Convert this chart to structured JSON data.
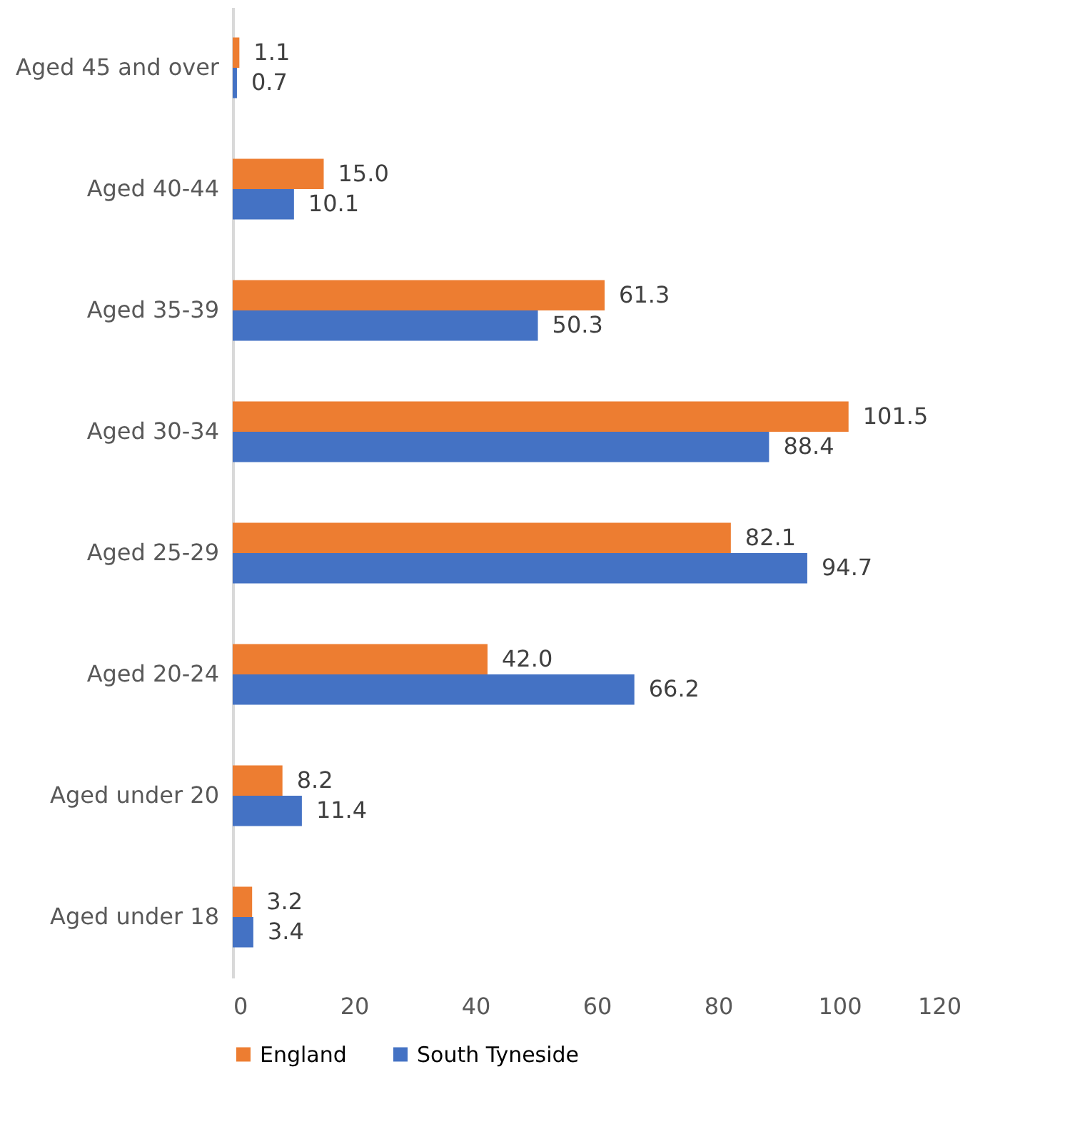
{
  "chart_data": {
    "type": "bar",
    "orientation": "horizontal",
    "categories": [
      "Aged 45 and over",
      "Aged 40-44",
      "Aged 35-39",
      "Aged 30-34",
      "Aged 25-29",
      "Aged 20-24",
      "Aged under 20",
      "Aged under 18"
    ],
    "series": [
      {
        "name": "England",
        "color": "#ed7d31",
        "values": [
          1.1,
          15.0,
          61.3,
          101.5,
          82.1,
          42.0,
          8.2,
          3.2
        ],
        "value_labels": [
          "1.1",
          "15.0",
          "61.3",
          "101.5",
          "82.1",
          "42.0",
          "8.2",
          "3.2"
        ]
      },
      {
        "name": "South Tyneside",
        "color": "#4472c4",
        "values": [
          0.7,
          10.1,
          50.3,
          88.4,
          94.7,
          66.2,
          11.4,
          3.4
        ],
        "value_labels": [
          "0.7",
          "10.1",
          "50.3",
          "88.4",
          "94.7",
          "66.2",
          "11.4",
          "3.4"
        ]
      }
    ],
    "xlim": [
      0,
      120
    ],
    "xticks": [
      0,
      20,
      40,
      60,
      80,
      100,
      120
    ],
    "grid": false,
    "legend": "bottom"
  }
}
